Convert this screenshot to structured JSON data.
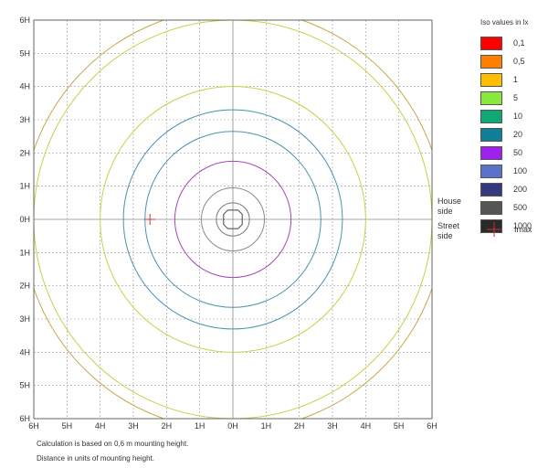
{
  "chart_data": {
    "type": "contour",
    "title": "",
    "xlim": [
      -6,
      6
    ],
    "ylim": [
      -6,
      6
    ],
    "grid": true,
    "x_ticks": [
      "6H",
      "5H",
      "4H",
      "3H",
      "2H",
      "1H",
      "0H",
      "1H",
      "2H",
      "3H",
      "4H",
      "5H",
      "6H"
    ],
    "y_ticks": [
      "6H",
      "5H",
      "4H",
      "3H",
      "2H",
      "1H",
      "0H",
      "1H",
      "2H",
      "3H",
      "4H",
      "5H",
      "6H"
    ],
    "side_labels": {
      "house_line1": "House",
      "house_line2": "side",
      "street_line1": "Street",
      "street_line2": "side"
    },
    "legend": {
      "title": "Iso values in lx",
      "position": "right",
      "items": [
        {
          "label": "0,1",
          "color": "#ff0000"
        },
        {
          "label": "0,5",
          "color": "#ff7f00"
        },
        {
          "label": "1",
          "color": "#ffbf00"
        },
        {
          "label": "5",
          "color": "#88e83c"
        },
        {
          "label": "10",
          "color": "#11a877"
        },
        {
          "label": "20",
          "color": "#0f7f9a"
        },
        {
          "label": "50",
          "color": "#a020f0"
        },
        {
          "label": "100",
          "color": "#5a72c8"
        },
        {
          "label": "200",
          "color": "#343a7a"
        },
        {
          "label": "500",
          "color": "#555555"
        },
        {
          "label": "1000",
          "color": "#2a2a2a"
        }
      ]
    },
    "imax": {
      "label": "Imax",
      "x": -2.5,
      "y": 0,
      "color": "#cc3333"
    },
    "contours": [
      {
        "lux": "1",
        "radius": 6.35,
        "color": "#c9a84a"
      },
      {
        "lux": "5",
        "radius": 4.0,
        "color": "#c8d246"
      },
      {
        "lux": "10",
        "radius": 6.0,
        "color": "#c8d246"
      },
      {
        "lux": "20",
        "radius": 3.3,
        "color": "#4a92ae"
      },
      {
        "lux": "20",
        "radius": 2.65,
        "color": "#4a92ae"
      },
      {
        "lux": "50",
        "radius": 1.75,
        "color": "#a04ab4"
      },
      {
        "lux": "200",
        "radius": 0.95,
        "color": "#8a8a8a"
      },
      {
        "lux": "500",
        "radius": 0.5,
        "color": "#777777"
      },
      {
        "lux": "1000",
        "radius": 0.28,
        "color": "#444444",
        "shape": "diamond"
      }
    ]
  },
  "footnotes": {
    "line1": "Calculation is based on 0,6 m mounting height.",
    "line2": "Distance in units of mounting height."
  }
}
